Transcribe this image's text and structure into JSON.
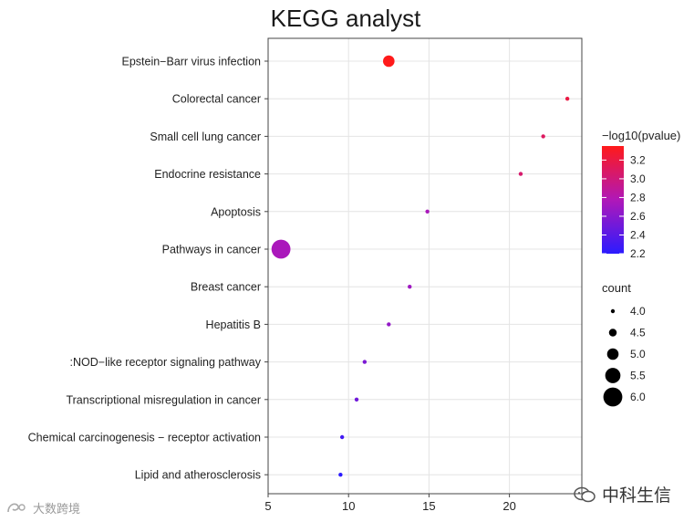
{
  "chart_data": {
    "type": "scatter",
    "title": "KEGG analyst",
    "xlabel": "",
    "ylabel": "",
    "xlim": [
      5,
      24.5
    ],
    "x_ticks": [
      5,
      10,
      15,
      20
    ],
    "categories": [
      "Epstein−Barr virus infection",
      "Colorectal cancer",
      "Small cell lung cancer",
      "Endocrine resistance",
      "Apoptosis",
      "Pathways in cancer",
      "Breast cancer",
      "Hepatitis B",
      ":NOD−like receptor signaling pathway",
      "Transcriptional misregulation in cancer",
      "Chemical carcinogenesis − receptor activation",
      "Lipid and atherosclerosis"
    ],
    "points": [
      {
        "term": "Epstein−Barr virus infection",
        "x": 12.5,
        "count": 5.0,
        "neglog10p": 3.35
      },
      {
        "term": "Colorectal cancer",
        "x": 23.6,
        "count": 4.0,
        "neglog10p": 3.2
      },
      {
        "term": "Small cell lung cancer",
        "x": 22.1,
        "count": 4.0,
        "neglog10p": 3.1
      },
      {
        "term": "Endocrine resistance",
        "x": 20.7,
        "count": 4.0,
        "neglog10p": 3.05
      },
      {
        "term": "Apoptosis",
        "x": 14.9,
        "count": 4.0,
        "neglog10p": 2.75
      },
      {
        "term": "Pathways in cancer",
        "x": 5.8,
        "count": 6.0,
        "neglog10p": 2.75
      },
      {
        "term": "Breast cancer",
        "x": 13.8,
        "count": 4.0,
        "neglog10p": 2.7
      },
      {
        "term": "Hepatitis B",
        "x": 12.5,
        "count": 4.0,
        "neglog10p": 2.65
      },
      {
        "term": ":NOD−like receptor signaling pathway",
        "x": 11.0,
        "count": 4.0,
        "neglog10p": 2.55
      },
      {
        "term": "Transcriptional misregulation in cancer",
        "x": 10.5,
        "count": 4.0,
        "neglog10p": 2.5
      },
      {
        "term": "Chemical carcinogenesis − receptor activation",
        "x": 9.6,
        "count": 4.0,
        "neglog10p": 2.3
      },
      {
        "term": "Lipid and atherosclerosis",
        "x": 9.5,
        "count": 4.0,
        "neglog10p": 2.2
      }
    ],
    "color_legend": {
      "title": "−log10(pvalue)",
      "min": 2.2,
      "max": 3.35,
      "ticks": [
        "3.2",
        "3.0",
        "2.8",
        "2.6",
        "2.4",
        "2.2"
      ],
      "low_color": "#2b1bff",
      "high_color": "#ff1a1a"
    },
    "size_legend": {
      "title": "count",
      "values": [
        "4.0",
        "4.5",
        "5.0",
        "5.5",
        "6.0"
      ]
    },
    "grid": true
  },
  "watermarks": {
    "left": "大数跨境",
    "right": "中科生信"
  }
}
